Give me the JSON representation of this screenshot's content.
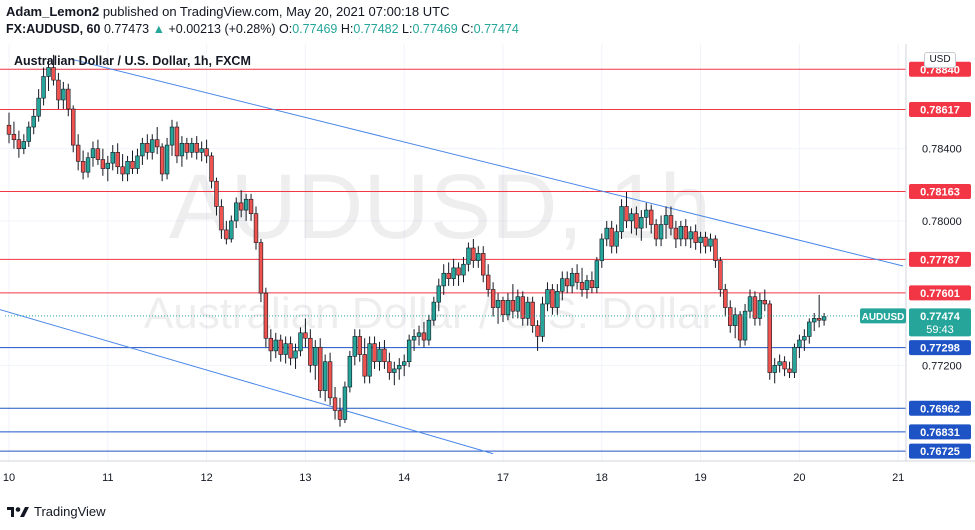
{
  "header": {
    "author": "Adam_Lemon2",
    "published_text": "published on TradingView.com, May 20, 2021 07:00:18 UTC",
    "symbol": "FX:AUDUSD, 60",
    "last": "0.77473",
    "arrow": "▲",
    "change": "+0.00213 (+0.28%)",
    "o_label": "O:",
    "o_value": "0.77469",
    "h_label": "H:",
    "h_value": "0.77482",
    "l_label": "L:",
    "l_value": "0.77469",
    "c_label": "C:",
    "c_value": "0.77474"
  },
  "chart_title": "Australian Dollar / U.S. Dollar, 1h, FXCM",
  "currency_button": "USD",
  "watermark": {
    "symbol": "AUDUSD, 1h",
    "name": "Australian Dollar / U.S. Dollar"
  },
  "footer": {
    "brand": "TradingView"
  },
  "colors": {
    "up": "#26a69a",
    "down": "#ef5350",
    "resistance": "#f23645",
    "support": "#1e53c5",
    "trendline": "#4a87e8",
    "grid": "#f0f3fa",
    "price_tag": "#26a69a"
  },
  "chart_data": {
    "type": "candlestick",
    "title": "Australian Dollar / U.S. Dollar, 1h, FXCM",
    "x_ticks": [
      "10",
      "11",
      "12",
      "13",
      "14",
      "17",
      "18",
      "19",
      "20",
      "21"
    ],
    "x_tick_index": [
      0,
      20,
      40,
      60,
      80,
      100,
      120,
      140,
      160,
      180
    ],
    "y_ticks": [
      {
        "value": 0.784,
        "label": "0.78400"
      },
      {
        "value": 0.78,
        "label": "0.78000"
      },
      {
        "value": 0.772,
        "label": "0.77200"
      }
    ],
    "ylim": [
      0.7667,
      0.7898
    ],
    "current_price": {
      "value": 0.77474,
      "label": "AUDUSD",
      "price_label": "0.77474",
      "countdown": "59:43"
    },
    "resistance_levels": [
      {
        "value": 0.7884,
        "label": "0.78840"
      },
      {
        "value": 0.78617,
        "label": "0.78617"
      },
      {
        "value": 0.78163,
        "label": "0.78163"
      },
      {
        "value": 0.77787,
        "label": "0.77787"
      },
      {
        "value": 0.77601,
        "label": "0.77601"
      }
    ],
    "support_levels": [
      {
        "value": 0.77298,
        "label": "0.77298"
      },
      {
        "value": 0.76962,
        "label": "0.76962"
      },
      {
        "value": 0.76831,
        "label": "0.76831"
      },
      {
        "value": 0.76725,
        "label": "0.76725"
      }
    ],
    "trendlines": [
      {
        "name": "upper",
        "from": {
          "index": 12,
          "value": 0.789
        },
        "to": {
          "index": 181,
          "value": 0.7775
        }
      },
      {
        "name": "lower",
        "from": {
          "index": -2,
          "value": 0.7751
        },
        "to": {
          "index": 98,
          "value": 0.7671
        }
      }
    ],
    "candles": [
      {
        "o": 0.7853,
        "h": 0.786,
        "l": 0.7843,
        "c": 0.7848
      },
      {
        "o": 0.7848,
        "h": 0.7855,
        "l": 0.784,
        "c": 0.7845
      },
      {
        "o": 0.7845,
        "h": 0.785,
        "l": 0.7835,
        "c": 0.784
      },
      {
        "o": 0.784,
        "h": 0.7848,
        "l": 0.7837,
        "c": 0.7844
      },
      {
        "o": 0.7844,
        "h": 0.7855,
        "l": 0.7841,
        "c": 0.7852
      },
      {
        "o": 0.7852,
        "h": 0.7862,
        "l": 0.7848,
        "c": 0.7858
      },
      {
        "o": 0.7858,
        "h": 0.7873,
        "l": 0.7855,
        "c": 0.7868
      },
      {
        "o": 0.7868,
        "h": 0.7885,
        "l": 0.7864,
        "c": 0.788
      },
      {
        "o": 0.788,
        "h": 0.789,
        "l": 0.7872,
        "c": 0.7885
      },
      {
        "o": 0.7885,
        "h": 0.7892,
        "l": 0.7875,
        "c": 0.7878
      },
      {
        "o": 0.7878,
        "h": 0.7882,
        "l": 0.7862,
        "c": 0.7867
      },
      {
        "o": 0.7867,
        "h": 0.7877,
        "l": 0.7862,
        "c": 0.7873
      },
      {
        "o": 0.7873,
        "h": 0.7876,
        "l": 0.7858,
        "c": 0.7862
      },
      {
        "o": 0.7862,
        "h": 0.7864,
        "l": 0.7838,
        "c": 0.7842
      },
      {
        "o": 0.7842,
        "h": 0.7848,
        "l": 0.7828,
        "c": 0.7833
      },
      {
        "o": 0.7833,
        "h": 0.7839,
        "l": 0.7823,
        "c": 0.7827
      },
      {
        "o": 0.7827,
        "h": 0.7838,
        "l": 0.7824,
        "c": 0.7835
      },
      {
        "o": 0.7835,
        "h": 0.7844,
        "l": 0.783,
        "c": 0.784
      },
      {
        "o": 0.784,
        "h": 0.7845,
        "l": 0.7831,
        "c": 0.7834
      },
      {
        "o": 0.7834,
        "h": 0.784,
        "l": 0.7825,
        "c": 0.7829
      },
      {
        "o": 0.7829,
        "h": 0.7836,
        "l": 0.7822,
        "c": 0.7832
      },
      {
        "o": 0.7832,
        "h": 0.7842,
        "l": 0.7828,
        "c": 0.7838
      },
      {
        "o": 0.7838,
        "h": 0.7843,
        "l": 0.7826,
        "c": 0.783
      },
      {
        "o": 0.783,
        "h": 0.7837,
        "l": 0.7822,
        "c": 0.7826
      },
      {
        "o": 0.7826,
        "h": 0.7836,
        "l": 0.7822,
        "c": 0.7833
      },
      {
        "o": 0.7833,
        "h": 0.7839,
        "l": 0.7826,
        "c": 0.7829
      },
      {
        "o": 0.7829,
        "h": 0.784,
        "l": 0.7826,
        "c": 0.7836
      },
      {
        "o": 0.7836,
        "h": 0.7846,
        "l": 0.7831,
        "c": 0.7843
      },
      {
        "o": 0.7843,
        "h": 0.7848,
        "l": 0.7834,
        "c": 0.7838
      },
      {
        "o": 0.7838,
        "h": 0.7848,
        "l": 0.7834,
        "c": 0.7845
      },
      {
        "o": 0.7845,
        "h": 0.7852,
        "l": 0.7837,
        "c": 0.7841
      },
      {
        "o": 0.7841,
        "h": 0.7843,
        "l": 0.7822,
        "c": 0.7826
      },
      {
        "o": 0.7826,
        "h": 0.7846,
        "l": 0.7823,
        "c": 0.7842
      },
      {
        "o": 0.7842,
        "h": 0.7856,
        "l": 0.7836,
        "c": 0.7852
      },
      {
        "o": 0.7852,
        "h": 0.7855,
        "l": 0.7832,
        "c": 0.7836
      },
      {
        "o": 0.7836,
        "h": 0.7847,
        "l": 0.783,
        "c": 0.7843
      },
      {
        "o": 0.7843,
        "h": 0.7846,
        "l": 0.7834,
        "c": 0.7838
      },
      {
        "o": 0.7838,
        "h": 0.7846,
        "l": 0.7835,
        "c": 0.7843
      },
      {
        "o": 0.7843,
        "h": 0.7847,
        "l": 0.7834,
        "c": 0.7838
      },
      {
        "o": 0.7838,
        "h": 0.7844,
        "l": 0.7833,
        "c": 0.784
      },
      {
        "o": 0.784,
        "h": 0.7845,
        "l": 0.7832,
        "c": 0.7836
      },
      {
        "o": 0.7836,
        "h": 0.7838,
        "l": 0.7818,
        "c": 0.7822
      },
      {
        "o": 0.7822,
        "h": 0.7824,
        "l": 0.7803,
        "c": 0.7808
      },
      {
        "o": 0.7808,
        "h": 0.7812,
        "l": 0.779,
        "c": 0.7795
      },
      {
        "o": 0.7795,
        "h": 0.78,
        "l": 0.7787,
        "c": 0.779
      },
      {
        "o": 0.779,
        "h": 0.7803,
        "l": 0.7788,
        "c": 0.78
      },
      {
        "o": 0.78,
        "h": 0.7813,
        "l": 0.7796,
        "c": 0.781
      },
      {
        "o": 0.781,
        "h": 0.7817,
        "l": 0.7802,
        "c": 0.7806
      },
      {
        "o": 0.7806,
        "h": 0.7815,
        "l": 0.78,
        "c": 0.7812
      },
      {
        "o": 0.7812,
        "h": 0.7815,
        "l": 0.78,
        "c": 0.7804
      },
      {
        "o": 0.7804,
        "h": 0.7808,
        "l": 0.7784,
        "c": 0.7788
      },
      {
        "o": 0.7788,
        "h": 0.779,
        "l": 0.7755,
        "c": 0.776
      },
      {
        "o": 0.776,
        "h": 0.7763,
        "l": 0.773,
        "c": 0.7735
      },
      {
        "o": 0.7735,
        "h": 0.774,
        "l": 0.7722,
        "c": 0.7728
      },
      {
        "o": 0.7728,
        "h": 0.7738,
        "l": 0.7724,
        "c": 0.7734
      },
      {
        "o": 0.7734,
        "h": 0.7737,
        "l": 0.7722,
        "c": 0.7726
      },
      {
        "o": 0.7726,
        "h": 0.7736,
        "l": 0.7721,
        "c": 0.7732
      },
      {
        "o": 0.7732,
        "h": 0.7736,
        "l": 0.772,
        "c": 0.7724
      },
      {
        "o": 0.7724,
        "h": 0.7732,
        "l": 0.7718,
        "c": 0.7728
      },
      {
        "o": 0.7728,
        "h": 0.7741,
        "l": 0.7725,
        "c": 0.7738
      },
      {
        "o": 0.7738,
        "h": 0.7746,
        "l": 0.773,
        "c": 0.7735
      },
      {
        "o": 0.7735,
        "h": 0.774,
        "l": 0.7716,
        "c": 0.772
      },
      {
        "o": 0.772,
        "h": 0.7734,
        "l": 0.7712,
        "c": 0.773
      },
      {
        "o": 0.773,
        "h": 0.7735,
        "l": 0.7702,
        "c": 0.7706
      },
      {
        "o": 0.7706,
        "h": 0.7726,
        "l": 0.77,
        "c": 0.7722
      },
      {
        "o": 0.7722,
        "h": 0.7727,
        "l": 0.7698,
        "c": 0.7702
      },
      {
        "o": 0.7702,
        "h": 0.7708,
        "l": 0.769,
        "c": 0.7695
      },
      {
        "o": 0.7695,
        "h": 0.7702,
        "l": 0.7686,
        "c": 0.769
      },
      {
        "o": 0.769,
        "h": 0.7711,
        "l": 0.7688,
        "c": 0.7708
      },
      {
        "o": 0.7708,
        "h": 0.7728,
        "l": 0.7705,
        "c": 0.7725
      },
      {
        "o": 0.7725,
        "h": 0.774,
        "l": 0.772,
        "c": 0.7736
      },
      {
        "o": 0.7736,
        "h": 0.774,
        "l": 0.7722,
        "c": 0.7726
      },
      {
        "o": 0.7726,
        "h": 0.7735,
        "l": 0.771,
        "c": 0.7714
      },
      {
        "o": 0.7714,
        "h": 0.7736,
        "l": 0.771,
        "c": 0.7732
      },
      {
        "o": 0.7732,
        "h": 0.7736,
        "l": 0.7718,
        "c": 0.7722
      },
      {
        "o": 0.7722,
        "h": 0.7733,
        "l": 0.7717,
        "c": 0.7729
      },
      {
        "o": 0.7729,
        "h": 0.7734,
        "l": 0.7718,
        "c": 0.7722
      },
      {
        "o": 0.7722,
        "h": 0.7727,
        "l": 0.7712,
        "c": 0.7716
      },
      {
        "o": 0.7716,
        "h": 0.7722,
        "l": 0.7709,
        "c": 0.7718
      },
      {
        "o": 0.7718,
        "h": 0.7724,
        "l": 0.7712,
        "c": 0.772
      },
      {
        "o": 0.772,
        "h": 0.7726,
        "l": 0.7714,
        "c": 0.7722
      },
      {
        "o": 0.7722,
        "h": 0.7737,
        "l": 0.7719,
        "c": 0.7734
      },
      {
        "o": 0.7734,
        "h": 0.774,
        "l": 0.7728,
        "c": 0.7736
      },
      {
        "o": 0.7736,
        "h": 0.7742,
        "l": 0.7731,
        "c": 0.7738
      },
      {
        "o": 0.7738,
        "h": 0.7744,
        "l": 0.773,
        "c": 0.7734
      },
      {
        "o": 0.7734,
        "h": 0.7748,
        "l": 0.7731,
        "c": 0.7745
      },
      {
        "o": 0.7745,
        "h": 0.7758,
        "l": 0.7742,
        "c": 0.7755
      },
      {
        "o": 0.7755,
        "h": 0.7768,
        "l": 0.775,
        "c": 0.7764
      },
      {
        "o": 0.7764,
        "h": 0.7776,
        "l": 0.7759,
        "c": 0.7771
      },
      {
        "o": 0.7771,
        "h": 0.7777,
        "l": 0.7764,
        "c": 0.7768
      },
      {
        "o": 0.7768,
        "h": 0.7779,
        "l": 0.7764,
        "c": 0.7774
      },
      {
        "o": 0.7774,
        "h": 0.7777,
        "l": 0.7764,
        "c": 0.777
      },
      {
        "o": 0.777,
        "h": 0.778,
        "l": 0.7766,
        "c": 0.7776
      },
      {
        "o": 0.7776,
        "h": 0.7788,
        "l": 0.7772,
        "c": 0.7785
      },
      {
        "o": 0.7785,
        "h": 0.779,
        "l": 0.7774,
        "c": 0.7778
      },
      {
        "o": 0.7778,
        "h": 0.7786,
        "l": 0.7774,
        "c": 0.7782
      },
      {
        "o": 0.7782,
        "h": 0.7786,
        "l": 0.7766,
        "c": 0.777
      },
      {
        "o": 0.777,
        "h": 0.7776,
        "l": 0.7758,
        "c": 0.7762
      },
      {
        "o": 0.7762,
        "h": 0.7766,
        "l": 0.7747,
        "c": 0.7752
      },
      {
        "o": 0.7752,
        "h": 0.776,
        "l": 0.7743,
        "c": 0.7756
      },
      {
        "o": 0.7756,
        "h": 0.7758,
        "l": 0.7744,
        "c": 0.7748
      },
      {
        "o": 0.7748,
        "h": 0.776,
        "l": 0.7745,
        "c": 0.7756
      },
      {
        "o": 0.7756,
        "h": 0.7765,
        "l": 0.7746,
        "c": 0.775
      },
      {
        "o": 0.775,
        "h": 0.7762,
        "l": 0.7746,
        "c": 0.7758
      },
      {
        "o": 0.7758,
        "h": 0.7761,
        "l": 0.7742,
        "c": 0.7746
      },
      {
        "o": 0.7746,
        "h": 0.7758,
        "l": 0.7742,
        "c": 0.7755
      },
      {
        "o": 0.7755,
        "h": 0.7758,
        "l": 0.7738,
        "c": 0.7742
      },
      {
        "o": 0.7742,
        "h": 0.7745,
        "l": 0.7728,
        "c": 0.7736
      },
      {
        "o": 0.7736,
        "h": 0.7758,
        "l": 0.7733,
        "c": 0.7754
      },
      {
        "o": 0.7754,
        "h": 0.7766,
        "l": 0.775,
        "c": 0.7762
      },
      {
        "o": 0.7762,
        "h": 0.7765,
        "l": 0.7748,
        "c": 0.7752
      },
      {
        "o": 0.7752,
        "h": 0.7765,
        "l": 0.7748,
        "c": 0.7761
      },
      {
        "o": 0.7761,
        "h": 0.7772,
        "l": 0.7756,
        "c": 0.7768
      },
      {
        "o": 0.7768,
        "h": 0.7772,
        "l": 0.776,
        "c": 0.7764
      },
      {
        "o": 0.7764,
        "h": 0.7774,
        "l": 0.776,
        "c": 0.7771
      },
      {
        "o": 0.7771,
        "h": 0.7776,
        "l": 0.7762,
        "c": 0.7766
      },
      {
        "o": 0.7766,
        "h": 0.7774,
        "l": 0.7758,
        "c": 0.7762
      },
      {
        "o": 0.7762,
        "h": 0.777,
        "l": 0.7757,
        "c": 0.7767
      },
      {
        "o": 0.7767,
        "h": 0.7772,
        "l": 0.776,
        "c": 0.7763
      },
      {
        "o": 0.7763,
        "h": 0.778,
        "l": 0.776,
        "c": 0.7778
      },
      {
        "o": 0.7778,
        "h": 0.7793,
        "l": 0.7774,
        "c": 0.779
      },
      {
        "o": 0.779,
        "h": 0.78,
        "l": 0.7786,
        "c": 0.7796
      },
      {
        "o": 0.7796,
        "h": 0.78,
        "l": 0.7782,
        "c": 0.7786
      },
      {
        "o": 0.7786,
        "h": 0.7798,
        "l": 0.7782,
        "c": 0.7794
      },
      {
        "o": 0.7794,
        "h": 0.7812,
        "l": 0.779,
        "c": 0.7808
      },
      {
        "o": 0.7808,
        "h": 0.7816,
        "l": 0.7796,
        "c": 0.78
      },
      {
        "o": 0.78,
        "h": 0.7807,
        "l": 0.7793,
        "c": 0.7804
      },
      {
        "o": 0.7804,
        "h": 0.7808,
        "l": 0.7792,
        "c": 0.7796
      },
      {
        "o": 0.7796,
        "h": 0.7806,
        "l": 0.7789,
        "c": 0.7802
      },
      {
        "o": 0.7802,
        "h": 0.781,
        "l": 0.7796,
        "c": 0.7806
      },
      {
        "o": 0.7806,
        "h": 0.7809,
        "l": 0.7793,
        "c": 0.7798
      },
      {
        "o": 0.7798,
        "h": 0.7801,
        "l": 0.7786,
        "c": 0.779
      },
      {
        "o": 0.779,
        "h": 0.7803,
        "l": 0.7786,
        "c": 0.7798
      },
      {
        "o": 0.7798,
        "h": 0.7808,
        "l": 0.779,
        "c": 0.7803
      },
      {
        "o": 0.7803,
        "h": 0.7808,
        "l": 0.7792,
        "c": 0.7796
      },
      {
        "o": 0.7796,
        "h": 0.78,
        "l": 0.7785,
        "c": 0.779
      },
      {
        "o": 0.779,
        "h": 0.78,
        "l": 0.7786,
        "c": 0.7797
      },
      {
        "o": 0.7797,
        "h": 0.7801,
        "l": 0.7786,
        "c": 0.779
      },
      {
        "o": 0.779,
        "h": 0.7797,
        "l": 0.7785,
        "c": 0.7794
      },
      {
        "o": 0.7794,
        "h": 0.7798,
        "l": 0.7784,
        "c": 0.7788
      },
      {
        "o": 0.7788,
        "h": 0.7794,
        "l": 0.7782,
        "c": 0.7791
      },
      {
        "o": 0.7791,
        "h": 0.7794,
        "l": 0.7782,
        "c": 0.7786
      },
      {
        "o": 0.7786,
        "h": 0.7793,
        "l": 0.7783,
        "c": 0.779
      },
      {
        "o": 0.779,
        "h": 0.7792,
        "l": 0.7774,
        "c": 0.7778
      },
      {
        "o": 0.7778,
        "h": 0.778,
        "l": 0.7758,
        "c": 0.7762
      },
      {
        "o": 0.7762,
        "h": 0.7765,
        "l": 0.7747,
        "c": 0.7752
      },
      {
        "o": 0.7752,
        "h": 0.7756,
        "l": 0.7738,
        "c": 0.7742
      },
      {
        "o": 0.7742,
        "h": 0.7752,
        "l": 0.7735,
        "c": 0.7748
      },
      {
        "o": 0.7748,
        "h": 0.775,
        "l": 0.773,
        "c": 0.7734
      },
      {
        "o": 0.7734,
        "h": 0.7754,
        "l": 0.7731,
        "c": 0.775
      },
      {
        "o": 0.775,
        "h": 0.7762,
        "l": 0.7746,
        "c": 0.7758
      },
      {
        "o": 0.7758,
        "h": 0.7761,
        "l": 0.7742,
        "c": 0.7746
      },
      {
        "o": 0.7746,
        "h": 0.776,
        "l": 0.7742,
        "c": 0.7756
      },
      {
        "o": 0.7756,
        "h": 0.7762,
        "l": 0.775,
        "c": 0.7754
      },
      {
        "o": 0.7754,
        "h": 0.7756,
        "l": 0.7712,
        "c": 0.7716
      },
      {
        "o": 0.7716,
        "h": 0.7724,
        "l": 0.771,
        "c": 0.772
      },
      {
        "o": 0.772,
        "h": 0.7726,
        "l": 0.7716,
        "c": 0.7722
      },
      {
        "o": 0.7722,
        "h": 0.7725,
        "l": 0.7714,
        "c": 0.7718
      },
      {
        "o": 0.7718,
        "h": 0.7722,
        "l": 0.7713,
        "c": 0.7716
      },
      {
        "o": 0.7716,
        "h": 0.7732,
        "l": 0.7713,
        "c": 0.773
      },
      {
        "o": 0.773,
        "h": 0.7737,
        "l": 0.7724,
        "c": 0.7734
      },
      {
        "o": 0.7734,
        "h": 0.774,
        "l": 0.7728,
        "c": 0.7736
      },
      {
        "o": 0.7736,
        "h": 0.7746,
        "l": 0.7732,
        "c": 0.7744
      },
      {
        "o": 0.7744,
        "h": 0.7749,
        "l": 0.7739,
        "c": 0.7746
      },
      {
        "o": 0.7746,
        "h": 0.7759,
        "l": 0.7741,
        "c": 0.7745
      },
      {
        "o": 0.7745,
        "h": 0.7749,
        "l": 0.7742,
        "c": 0.7747
      }
    ]
  }
}
